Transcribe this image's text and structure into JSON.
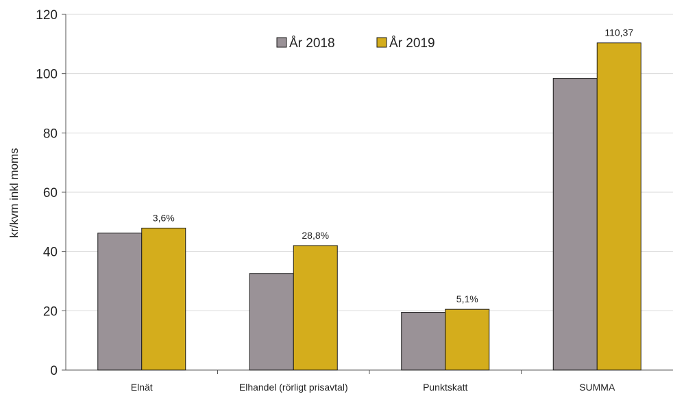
{
  "chart_data": {
    "type": "bar",
    "ylabel": "kr/kvm inkl moms",
    "ylim": [
      0,
      120
    ],
    "yticks": [
      0,
      20,
      40,
      60,
      80,
      100,
      120
    ],
    "grid": true,
    "legend_position": "top-center",
    "categories": [
      "Elnät",
      "Elhandel (rörligt prisavtal)",
      "Punktskatt",
      "SUMMA"
    ],
    "series": [
      {
        "name": "År 2018",
        "color": "#9a9297",
        "values": [
          46.2,
          32.6,
          19.5,
          98.4
        ]
      },
      {
        "name": "År 2019",
        "color": "#d4ad1c",
        "values": [
          47.9,
          42.0,
          20.5,
          110.37
        ]
      }
    ],
    "annotations": [
      {
        "category_index": 0,
        "series_index": 1,
        "text": "3,6%"
      },
      {
        "category_index": 1,
        "series_index": 1,
        "text": "28,8%"
      },
      {
        "category_index": 2,
        "series_index": 1,
        "text": "5,1%"
      },
      {
        "category_index": 3,
        "series_index": 1,
        "text": "110,37"
      }
    ]
  }
}
